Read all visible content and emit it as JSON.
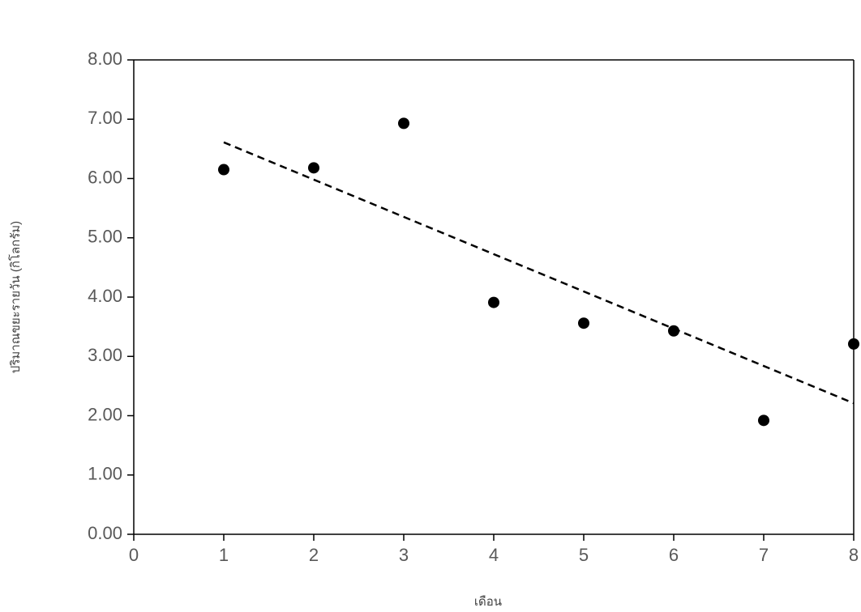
{
  "chart_data": {
    "type": "scatter",
    "x_label": "เดือน",
    "y_label": "ปริมาณขยะรายวัน (กิโลกรัม)",
    "x": [
      1,
      2,
      3,
      4,
      5,
      6,
      7,
      8
    ],
    "series": [
      {
        "color": "#000000",
        "values": [
          6.15,
          6.18,
          6.93,
          3.91,
          3.56,
          3.43,
          1.92,
          3.21
        ]
      }
    ],
    "trendline": {
      "x": [
        1,
        8
      ],
      "values": [
        6.61,
        2.21
      ],
      "color": "#000000"
    },
    "xlim": [
      0,
      8
    ],
    "xticks": [
      0,
      1,
      2,
      3,
      4,
      5,
      6,
      7,
      8
    ],
    "ylim": [
      0,
      8
    ],
    "yticks": [
      {
        "value": 0,
        "label": "0.00"
      },
      {
        "value": 1,
        "label": "1.00"
      },
      {
        "value": 2,
        "label": "2.00"
      },
      {
        "value": 3,
        "label": "3.00"
      },
      {
        "value": 4,
        "label": "4.00"
      },
      {
        "value": 5,
        "label": "5.00"
      },
      {
        "value": 6,
        "label": "6.00"
      },
      {
        "value": 7,
        "label": "7.00"
      },
      {
        "value": 8,
        "label": "8.00"
      }
    ]
  }
}
